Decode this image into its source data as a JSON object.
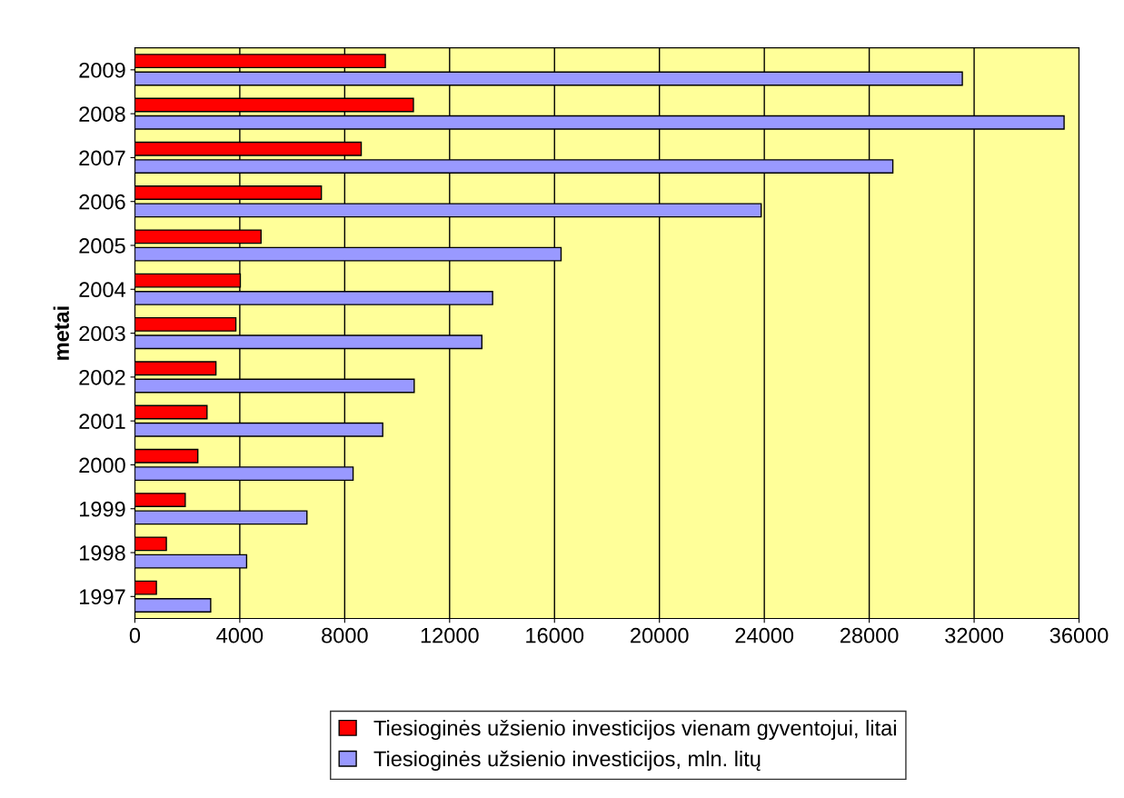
{
  "chart_data": {
    "type": "bar",
    "orientation": "horizontal",
    "ylabel": "metai",
    "categories": [
      "2009",
      "2008",
      "2007",
      "2006",
      "2005",
      "2004",
      "2003",
      "2002",
      "2001",
      "2000",
      "1999",
      "1998",
      "1997"
    ],
    "series": [
      {
        "name": "Tiesioginės užsienio investicijos vienam gyventojui, litai",
        "color": "#ff0000",
        "values": [
          9550,
          10620,
          8630,
          7110,
          4810,
          4020,
          3850,
          3090,
          2750,
          2400,
          1920,
          1200,
          820
        ]
      },
      {
        "name": "Tiesioginės užsienio investicijos, mln. litų",
        "color": "#9999ff",
        "values": [
          31550,
          35430,
          28900,
          23880,
          16250,
          13640,
          13230,
          10650,
          9450,
          8320,
          6560,
          4260,
          2890
        ]
      }
    ],
    "xlim": [
      0,
      36000
    ],
    "xticks": [
      0,
      4000,
      8000,
      12000,
      16000,
      20000,
      24000,
      28000,
      32000,
      36000
    ],
    "grid": "x",
    "legend": "bottom"
  }
}
